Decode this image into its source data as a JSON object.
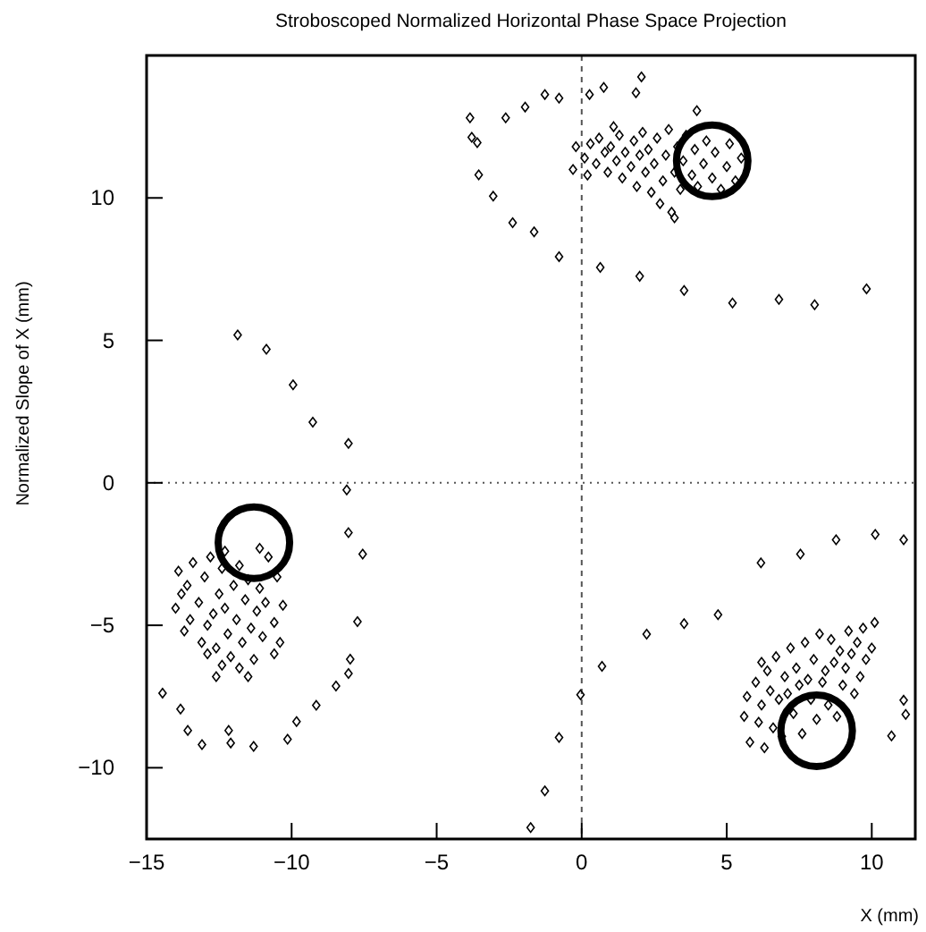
{
  "chart_data": {
    "type": "scatter",
    "title": "Stroboscoped Normalized Horizontal Phase Space Projection",
    "xlabel": "X (mm)",
    "ylabel": "Normalized Slope of X (mm)",
    "xlim": [
      -15,
      11.5
    ],
    "ylim": [
      -12.5,
      15
    ],
    "xticks": [
      {
        "value": -15,
        "label": "−15"
      },
      {
        "value": -10,
        "label": "−10"
      },
      {
        "value": -5,
        "label": "−5"
      },
      0,
      5,
      10
    ],
    "yticks": [
      {
        "value": -10,
        "label": "−10"
      },
      {
        "value": -5,
        "label": "−5"
      },
      0,
      5,
      10
    ],
    "grid": false,
    "ref_lines": [
      {
        "axis": "x",
        "value": 0,
        "line_style": "dashed",
        "color": "#555555"
      },
      {
        "axis": "y",
        "value": 0,
        "line_style": "dotted",
        "color": "#555555"
      }
    ],
    "series": [
      {
        "color": "#000000",
        "marker": "diamond",
        "x": [
          -11.86,
          -10.87,
          -9.95,
          -9.27,
          -8.04,
          -8.1,
          -8.04,
          -7.55,
          -7.73,
          -7.98,
          -8.04,
          -8.47,
          -9.15,
          -9.83,
          -10.14,
          -11.31,
          -12.1,
          -12.17,
          -13.09,
          -13.58,
          -13.83,
          -14.45,
          -3.85,
          -3.79,
          -3.6,
          -3.55,
          -3.05,
          -2.38,
          -1.64,
          -0.78,
          -2.62,
          -1.95,
          -1.27,
          -0.78,
          0.27,
          0.76,
          1.87,
          2.06,
          0.64,
          2.0,
          3.53,
          5.2,
          6.8,
          8.03,
          9.82,
          3.97,
          8.77,
          10.12,
          11.1,
          7.54,
          6.18,
          4.7,
          3.53,
          2.24,
          0.7,
          -0.04,
          -0.78,
          -1.27,
          -1.76,
          11.1,
          10.68,
          11.17,
          0.1,
          0.3,
          0.5,
          0.6,
          0.8,
          0.9,
          1.0,
          1.2,
          1.3,
          1.4,
          1.5,
          1.7,
          1.8,
          1.9,
          2.0,
          2.1,
          2.2,
          2.3,
          2.4,
          2.5,
          2.6,
          2.7,
          2.8,
          2.9,
          3.0,
          3.1,
          3.2,
          3.3,
          3.4,
          3.5,
          3.6,
          3.8,
          3.9,
          4.0,
          4.2,
          4.3,
          4.5,
          4.6,
          4.8,
          5.0,
          5.1,
          5.3,
          5.5,
          -0.3,
          -0.2,
          0.2,
          3.2,
          1.1,
          -13.9,
          -13.6,
          -13.4,
          -13.2,
          -13.0,
          -12.9,
          -12.8,
          -12.7,
          -12.6,
          -12.5,
          -12.4,
          -12.3,
          -12.2,
          -12.1,
          -12.0,
          -11.9,
          -11.8,
          -11.7,
          -11.6,
          -11.5,
          -11.4,
          -11.3,
          -11.2,
          -11.1,
          -11.0,
          -10.9,
          -10.8,
          -10.6,
          -10.5,
          -10.4,
          -10.3,
          -13.1,
          -12.9,
          -13.5,
          -14.0,
          -13.7,
          -12.4,
          -11.8,
          -12.3,
          -11.1,
          -10.6,
          -11.5,
          -12.6,
          -13.8,
          5.6,
          5.7,
          5.8,
          6.0,
          6.1,
          6.2,
          6.3,
          6.4,
          6.5,
          6.6,
          6.7,
          6.8,
          6.9,
          7.0,
          7.1,
          7.2,
          7.3,
          7.4,
          7.5,
          7.6,
          7.7,
          7.8,
          7.9,
          8.0,
          8.1,
          8.2,
          8.3,
          8.4,
          8.5,
          8.6,
          8.7,
          8.8,
          8.9,
          9.0,
          9.1,
          9.2,
          9.3,
          9.4,
          9.5,
          9.6,
          9.7,
          9.8,
          10.0,
          10.1,
          6.2
        ],
        "values": [
          5.19,
          4.69,
          3.44,
          2.13,
          1.38,
          -0.25,
          -1.75,
          -2.5,
          -4.87,
          -6.19,
          -6.69,
          -7.13,
          -7.81,
          -8.38,
          -9.0,
          -9.25,
          -9.13,
          -8.69,
          -9.19,
          -8.69,
          -7.94,
          -7.38,
          12.81,
          12.13,
          11.94,
          10.81,
          10.06,
          9.13,
          8.81,
          7.94,
          12.81,
          13.19,
          13.63,
          13.5,
          13.63,
          13.88,
          13.69,
          14.25,
          7.56,
          7.25,
          6.75,
          6.31,
          6.44,
          6.25,
          6.81,
          13.06,
          -2.0,
          -1.81,
          -2.0,
          -2.5,
          -2.81,
          -4.63,
          -4.94,
          -5.31,
          -6.44,
          -7.44,
          -8.94,
          -10.81,
          -12.1,
          -7.63,
          -8.88,
          -8.13,
          11.4,
          11.9,
          11.2,
          12.1,
          11.6,
          10.9,
          11.8,
          11.3,
          12.2,
          10.7,
          11.6,
          11.1,
          12.0,
          10.4,
          11.5,
          12.3,
          10.9,
          11.7,
          10.2,
          11.2,
          12.1,
          9.8,
          10.6,
          11.5,
          12.4,
          9.5,
          10.9,
          11.8,
          10.3,
          11.3,
          12.2,
          10.8,
          11.7,
          10.4,
          11.2,
          12.0,
          10.7,
          11.6,
          10.3,
          11.1,
          11.9,
          10.6,
          11.4,
          11.0,
          11.8,
          10.8,
          9.3,
          12.5,
          -3.1,
          -3.6,
          -2.8,
          -4.2,
          -3.3,
          -5.0,
          -2.6,
          -4.6,
          -5.8,
          -3.9,
          -3.0,
          -4.4,
          -5.3,
          -6.1,
          -3.6,
          -4.8,
          -2.9,
          -5.6,
          -4.1,
          -3.4,
          -5.1,
          -6.2,
          -4.5,
          -3.7,
          -5.4,
          -4.2,
          -2.6,
          -4.9,
          -3.3,
          -5.6,
          -4.3,
          -5.6,
          -6.0,
          -4.8,
          -4.4,
          -5.2,
          -6.4,
          -6.5,
          -2.4,
          -2.3,
          -6.0,
          -6.8,
          -6.8,
          -3.9,
          -8.2,
          -7.5,
          -9.1,
          -7.0,
          -8.4,
          -7.8,
          -9.3,
          -6.6,
          -7.3,
          -8.6,
          -6.1,
          -7.6,
          -8.9,
          -6.8,
          -7.4,
          -5.8,
          -8.1,
          -6.5,
          -7.1,
          -8.8,
          -5.6,
          -6.9,
          -7.6,
          -6.2,
          -8.3,
          -5.3,
          -7.0,
          -6.6,
          -7.8,
          -5.5,
          -6.3,
          -8.2,
          -5.9,
          -7.1,
          -6.5,
          -5.2,
          -6.0,
          -7.4,
          -5.6,
          -6.8,
          -5.1,
          -6.2,
          -5.8,
          -4.9,
          -6.3
        ]
      },
      {
        "color": "#000000",
        "marker": "circle",
        "x": [
          4.5,
          -11.3,
          8.1
        ],
        "values": [
          11.3,
          -2.1,
          -8.7
        ]
      }
    ]
  }
}
